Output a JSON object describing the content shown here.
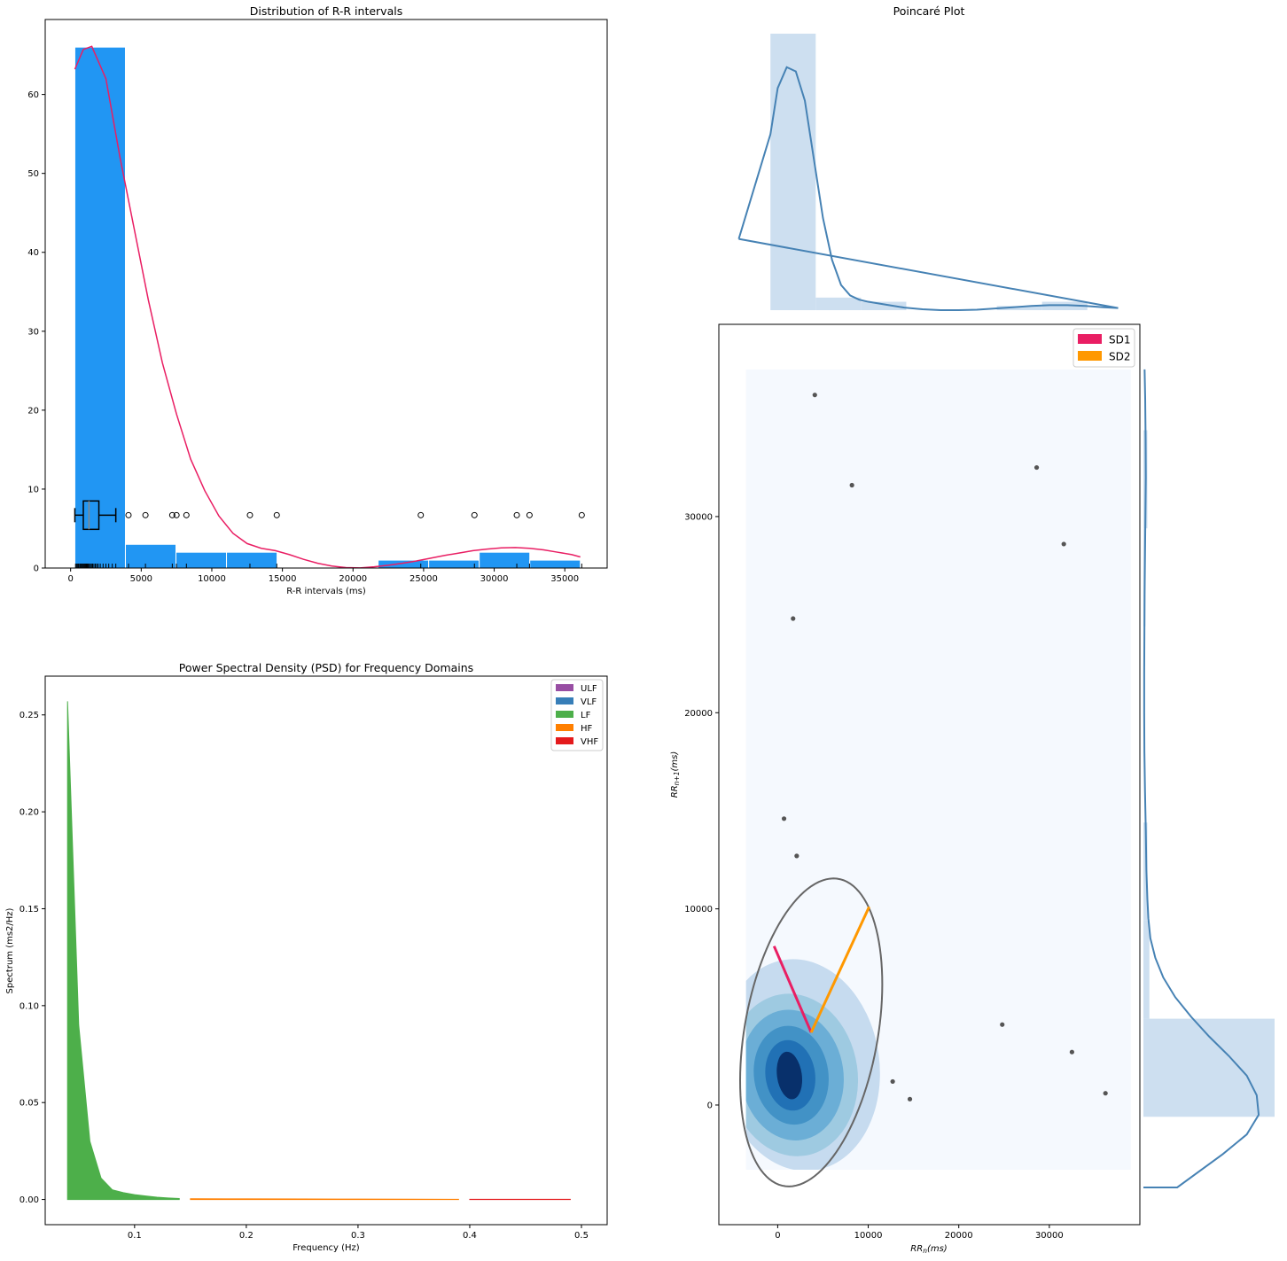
{
  "chart_data": [
    {
      "type": "bar",
      "title": "Distribution of R-R intervals",
      "xlabel": "R-R intervals (ms)",
      "ylabel": "",
      "xlim": [
        -1800,
        38000
      ],
      "ylim": [
        0,
        69.5
      ],
      "xticks": [
        0,
        5000,
        10000,
        15000,
        20000,
        25000,
        30000,
        35000
      ],
      "yticks": [
        0,
        10,
        20,
        30,
        40,
        50,
        60
      ],
      "bin_edges": [
        300,
        3880,
        7460,
        11040,
        14620,
        18200,
        21780,
        25360,
        28940,
        32520,
        36100
      ],
      "values": [
        66,
        3,
        2,
        2,
        0,
        0,
        1,
        1,
        2,
        1
      ],
      "kde": {
        "x": [
          300,
          900,
          1500,
          2500,
          3500,
          4500,
          5500,
          6500,
          7500,
          8500,
          9500,
          10500,
          11500,
          12500,
          13500,
          14500,
          15500,
          16500,
          17500,
          18500,
          19500,
          20500,
          21500,
          22500,
          23500,
          24500,
          25500,
          26500,
          27500,
          28500,
          29500,
          30500,
          31500,
          32500,
          33500,
          34500,
          35500,
          36100
        ],
        "y": [
          63.2,
          65.7,
          66.1,
          62,
          52,
          43,
          34,
          26,
          19.5,
          13.8,
          9.8,
          6.6,
          4.4,
          3.1,
          2.5,
          2.2,
          1.7,
          1.1,
          0.6,
          0.25,
          0.05,
          0.02,
          0.15,
          0.35,
          0.6,
          0.9,
          1.25,
          1.6,
          1.9,
          2.2,
          2.4,
          2.55,
          2.6,
          2.5,
          2.3,
          2,
          1.7,
          1.4
        ]
      },
      "boxplot": {
        "whisker_low": 300,
        "q1": 900,
        "median": 1300,
        "q3": 2000,
        "whisker_high": 3200,
        "y": 6.7
      },
      "outliers": [
        4100,
        5300,
        7200,
        7500,
        8200,
        12700,
        14600,
        24800,
        28600,
        31600,
        32500,
        36200
      ],
      "rug": [
        350,
        420,
        500,
        560,
        640,
        700,
        760,
        820,
        880,
        940,
        1000,
        1060,
        1120,
        1180,
        1250,
        1320,
        1400,
        1480,
        1560,
        1650,
        1750,
        1850,
        1950,
        2100,
        2300,
        2500,
        2700,
        2950,
        3200,
        4100,
        5300,
        7200,
        7500,
        8200,
        12700,
        14600,
        24800,
        28600,
        31600,
        32500,
        36200
      ],
      "colors": {
        "bars": "#2196f3",
        "kde": "#e91e63",
        "box": "#000000"
      }
    },
    {
      "type": "area",
      "title": "Power Spectral Density (PSD) for Frequency Domains",
      "xlabel": "Frequency (Hz)",
      "ylabel": "Spectrum (ms2/Hz)",
      "xlim": [
        0.02,
        0.523
      ],
      "ylim": [
        -0.013,
        0.27
      ],
      "xticks": [
        0.1,
        0.2,
        0.3,
        0.4,
        0.5
      ],
      "yticks": [
        0.0,
        0.05,
        0.1,
        0.15,
        0.2,
        0.25
      ],
      "legend": [
        {
          "name": "ULF",
          "color": "#984ea3"
        },
        {
          "name": "VLF",
          "color": "#377eb8"
        },
        {
          "name": "LF",
          "color": "#4daf4a"
        },
        {
          "name": "HF",
          "color": "#ff7f00"
        },
        {
          "name": "VHF",
          "color": "#e41a1c"
        }
      ],
      "legend_position": "top-right",
      "series": [
        {
          "name": "LF",
          "x": [
            0.04,
            0.05,
            0.06,
            0.07,
            0.08,
            0.09,
            0.1,
            0.11,
            0.12,
            0.13,
            0.14
          ],
          "y": [
            0.257,
            0.09,
            0.03,
            0.011,
            0.005,
            0.0035,
            0.0025,
            0.0018,
            0.0012,
            0.0008,
            0.0005
          ]
        },
        {
          "name": "HF",
          "x": [
            0.15,
            0.2,
            0.25,
            0.3,
            0.35,
            0.39
          ],
          "y": [
            0.0004,
            0.0003,
            0.00025,
            0.0002,
            0.00015,
            0.0001
          ]
        },
        {
          "name": "VHF",
          "x": [
            0.4,
            0.45,
            0.49
          ],
          "y": [
            0.0001,
            0.0001,
            0.0001
          ]
        }
      ]
    },
    {
      "type": "scatter",
      "title": "Poincaré Plot",
      "xlabel": "$RR_n (ms)$",
      "ylabel": "$RR_{n+1} (ms)$",
      "xlim": [
        -6500,
        40000
      ],
      "ylim": [
        -6100,
        39800
      ],
      "xticks": [
        0,
        10000,
        20000,
        30000
      ],
      "yticks": [
        0,
        10000,
        20000,
        30000
      ],
      "points": [
        {
          "x": 4100,
          "y": 36200
        },
        {
          "x": 8200,
          "y": 31600
        },
        {
          "x": 28600,
          "y": 32500
        },
        {
          "x": 31600,
          "y": 28600
        },
        {
          "x": 1700,
          "y": 24800
        },
        {
          "x": 700,
          "y": 14600
        },
        {
          "x": 2100,
          "y": 12700
        },
        {
          "x": 24800,
          "y": 4100
        },
        {
          "x": 32500,
          "y": 2700
        },
        {
          "x": 36200,
          "y": 600
        },
        {
          "x": 12700,
          "y": 1200
        },
        {
          "x": 14600,
          "y": 300
        }
      ],
      "ellipse": {
        "center": [
          3700,
          3700
        ],
        "sd1": 6500,
        "sd2": 9000,
        "angle_deg": 45
      },
      "sd1_line": {
        "from": [
          3700,
          3700
        ],
        "to": [
          -400,
          8100
        ]
      },
      "sd2_line": {
        "from": [
          3700,
          3700
        ],
        "to": [
          10100,
          10100
        ]
      },
      "legend": [
        {
          "name": "SD1",
          "color": "#e91e63"
        },
        {
          "name": "SD2",
          "color": "#ff9800"
        }
      ],
      "legend_position": "top-right",
      "density_levels": 5,
      "colors": {
        "points": "#555555",
        "ellipse": "#666666",
        "marginal": "#4682b4",
        "marginal_fill": "#cddff0",
        "density": [
          "#f5f9fe",
          "#c6dbef",
          "#9ecae1",
          "#6baed6",
          "#4292c6",
          "#2171b5",
          "#08306b"
        ]
      },
      "marginal_x": {
        "bin_edges": [
          -800,
          4200,
          9200,
          14200,
          19200,
          24200,
          29200,
          34200
        ],
        "heights": [
          66,
          3,
          2,
          0,
          0,
          1,
          2
        ],
        "kde_x": [
          -4300,
          -800,
          0,
          1000,
          2000,
          3000,
          4000,
          5000,
          6000,
          7000,
          8000,
          9000,
          10000,
          12000,
          14000,
          16000,
          18000,
          20000,
          22000,
          24000,
          26000,
          28000,
          30000,
          32000,
          34000,
          36000,
          37600
        ],
        "kde_y": [
          17,
          42,
          53,
          58,
          57,
          50,
          36,
          22,
          12,
          6,
          3.5,
          2.5,
          2,
          1.3,
          0.6,
          0.2,
          0,
          0,
          0.1,
          0.4,
          0.7,
          1,
          1.2,
          1.2,
          1,
          0.7,
          0.5
        ]
      },
      "marginal_y": {
        "bin_edges": [
          -600,
          4400,
          9400,
          14400,
          19400,
          24400,
          29400,
          34400
        ],
        "heights": [
          66,
          3,
          2,
          0,
          0,
          1,
          2
        ],
        "kde_y": [
          -4200,
          -4200,
          -2500,
          -1500,
          -500,
          500,
          1500,
          2500,
          3500,
          4500,
          5500,
          6500,
          7500,
          8500,
          9500,
          10500,
          12000,
          14000,
          16000,
          18000,
          20000,
          22000,
          24000,
          26000,
          28000,
          30000,
          32000,
          34000,
          36000,
          37500
        ],
        "kde_x": [
          0,
          17,
          40,
          52,
          58,
          57,
          52,
          43,
          33,
          24,
          16,
          10,
          6,
          3.5,
          2.5,
          2,
          1.5,
          1.2,
          0.8,
          0.5,
          0.4,
          0.4,
          0.5,
          0.6,
          0.8,
          1,
          1.2,
          1.1,
          0.9,
          0.6
        ]
      }
    }
  ]
}
